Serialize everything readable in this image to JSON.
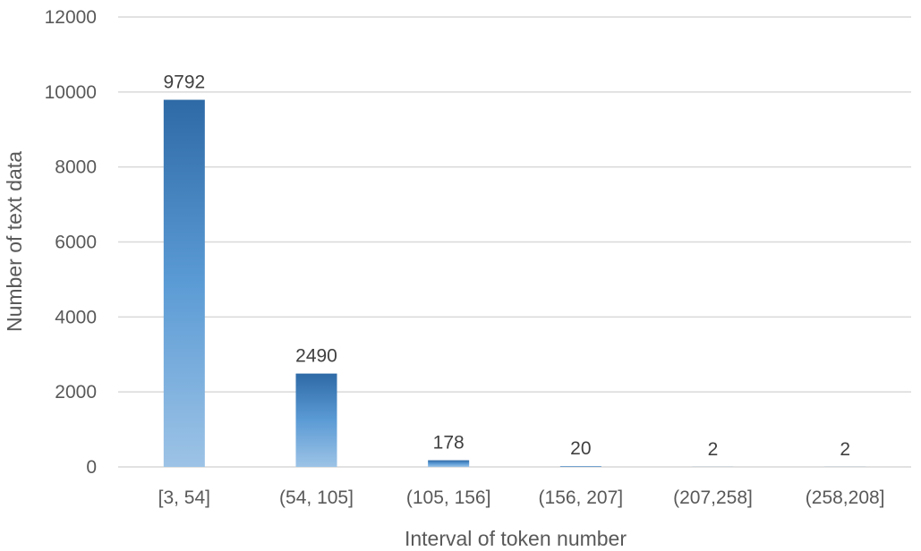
{
  "chart_data": {
    "type": "bar",
    "title": "",
    "xlabel": "Interval of token number",
    "ylabel": "Number of text data",
    "categories": [
      "[3, 54]",
      "(54, 105]",
      "(105, 156]",
      "(156, 207]",
      "(207,258]",
      "(258,208]"
    ],
    "values": [
      9792,
      2490,
      178,
      20,
      2,
      2
    ],
    "data_labels": [
      "9792",
      "2490",
      "178",
      "20",
      "2",
      "2"
    ],
    "ylim": [
      0,
      12000
    ],
    "yticks": [
      "0",
      "2000",
      "4000",
      "6000",
      "8000",
      "10000",
      "12000"
    ],
    "grid": true,
    "legend": "none",
    "colors": {
      "bar_top": "#2e6aa6",
      "bar_mid": "#5b9bd5",
      "bar_bottom": "#9dc3e6",
      "grid": "#d9d9d9"
    }
  }
}
